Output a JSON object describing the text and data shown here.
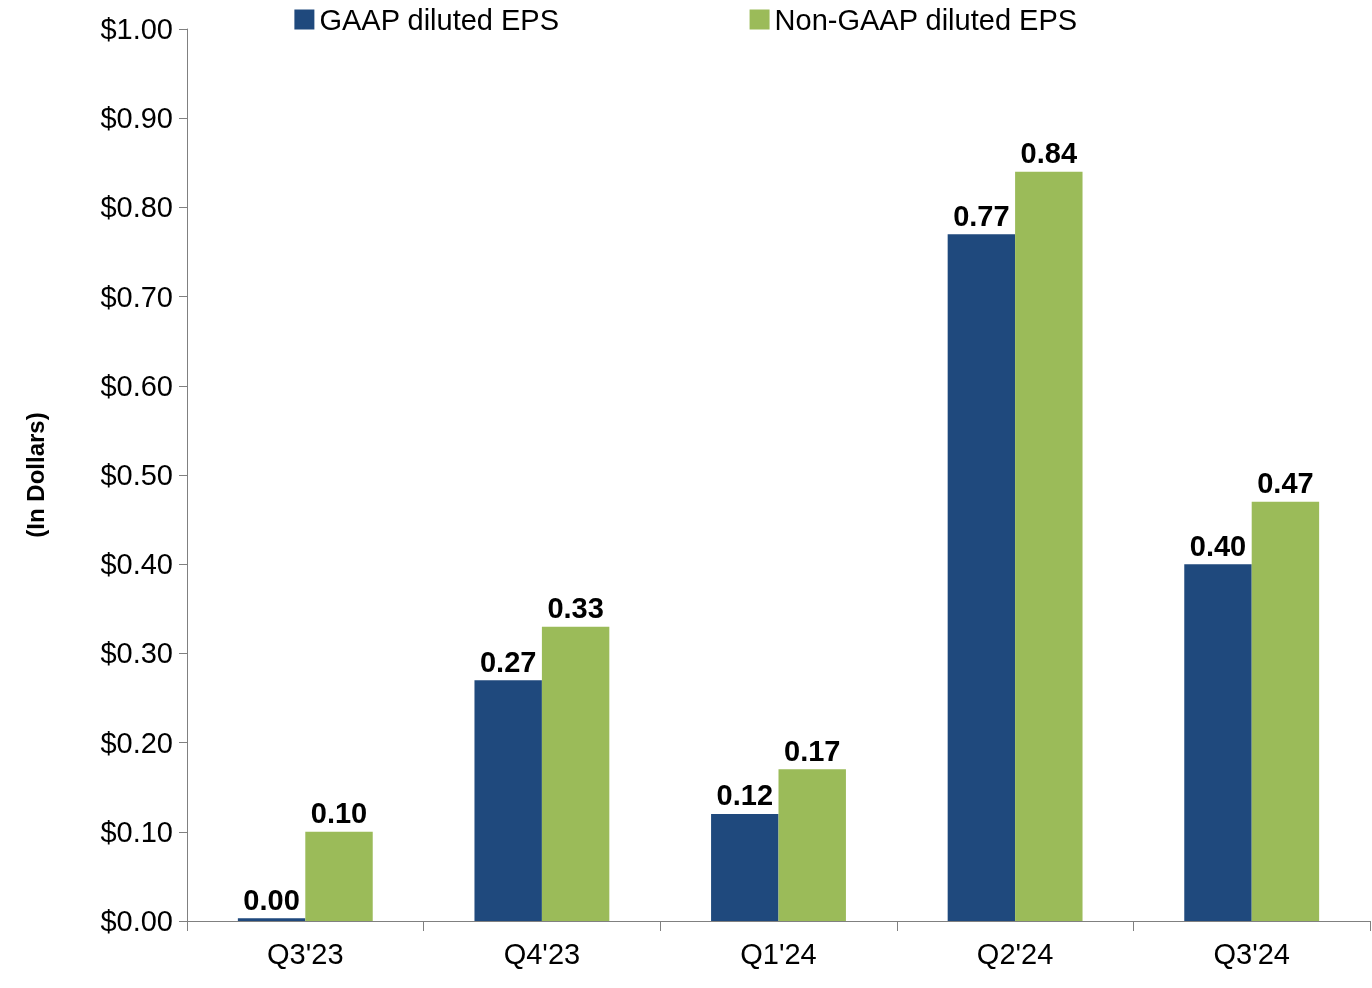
{
  "chart_data": {
    "type": "bar",
    "ylabel": "(In Dollars)",
    "categories": [
      "Q3'23",
      "Q4'23",
      "Q1'24",
      "Q2'24",
      "Q3'24"
    ],
    "series": [
      {
        "name": "GAAP diluted EPS",
        "color": "#1f497d",
        "values": [
          0.003,
          0.27,
          0.12,
          0.77,
          0.4
        ],
        "value_labels": [
          "0.00",
          "0.27",
          "0.12",
          "0.77",
          "0.40"
        ]
      },
      {
        "name": "Non-GAAP diluted EPS",
        "color": "#9bbb59",
        "values": [
          0.1,
          0.33,
          0.17,
          0.84,
          0.47
        ],
        "value_labels": [
          "0.10",
          "0.33",
          "0.17",
          "0.84",
          "0.47"
        ]
      }
    ],
    "ylim": [
      0,
      1
    ],
    "yticks": [
      {
        "value": 0,
        "label": "$0.00"
      },
      {
        "value": 0.1,
        "label": "$0.10"
      },
      {
        "value": 0.2,
        "label": "$0.20"
      },
      {
        "value": 0.3,
        "label": "$0.30"
      },
      {
        "value": 0.4,
        "label": "$0.40"
      },
      {
        "value": 0.5,
        "label": "$0.50"
      },
      {
        "value": 0.6,
        "label": "$0.60"
      },
      {
        "value": 0.7,
        "label": "$0.70"
      },
      {
        "value": 0.8,
        "label": "$0.80"
      },
      {
        "value": 0.9,
        "label": "$0.90"
      },
      {
        "value": 1,
        "label": "$1.00"
      }
    ],
    "grid": false,
    "legend": "top"
  }
}
